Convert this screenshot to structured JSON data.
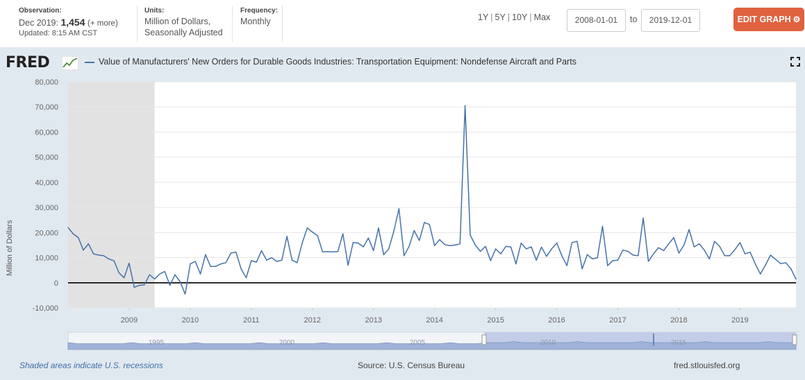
{
  "header": {
    "observation_label": "Observation:",
    "observation_date": "Dec 2019:",
    "observation_value": "1,454",
    "observation_more": "(+ more)",
    "updated": "Updated: 8:15 AM CST",
    "units_label": "Units:",
    "units_line1": "Million of Dollars,",
    "units_line2": "Seasonally Adjusted",
    "frequency_label": "Frequency:",
    "frequency_value": "Monthly",
    "range_1y": "1Y",
    "range_5y": "5Y",
    "range_10y": "10Y",
    "range_max": "Max",
    "range_sep": "|",
    "start_date": "2008-01-01",
    "to_label": "to",
    "end_date": "2019-12-01",
    "edit_graph": "EDIT GRAPH",
    "edit_icon": "gear-icon",
    "edit_color": "#e0623f"
  },
  "footer": {
    "recession_note": "Shaded areas indicate U.S. recessions",
    "source": "Source: U.S. Census Bureau",
    "url": "fred.stlouisfed.org"
  },
  "logo": "FRED",
  "chart_data": {
    "type": "line",
    "title": "Value of Manufacturers' New Orders for Durable Goods Industries: Transportation Equipment: Nondefense Aircraft and Parts",
    "ylabel": "Million of Dollars",
    "xlabel": "",
    "ylim": [
      -10000,
      80000
    ],
    "yticks": [
      "80,000",
      "70,000",
      "60,000",
      "50,000",
      "40,000",
      "30,000",
      "20,000",
      "10,000",
      "0",
      "-10,000"
    ],
    "ytick_values": [
      80000,
      70000,
      60000,
      50000,
      40000,
      30000,
      20000,
      10000,
      0,
      -10000
    ],
    "xticks": [
      "2009",
      "2010",
      "2011",
      "2012",
      "2013",
      "2014",
      "2015",
      "2016",
      "2017",
      "2018",
      "2019"
    ],
    "xlim": [
      "2008-01-01",
      "2019-12-01"
    ],
    "recession": {
      "start": "2008-01",
      "end": "2009-06"
    },
    "line_color": "#4572a7",
    "recession_color": "#e2e2e2",
    "navigator_labels": [
      "1995",
      "2000",
      "2005",
      "2010",
      "2015"
    ],
    "series": [
      {
        "start": "2008-01",
        "values": [
          22000,
          19500,
          18000,
          13000,
          15500,
          11500,
          11000,
          10800,
          9500,
          8800,
          4000,
          2000,
          7800,
          -1800,
          -1000,
          -800,
          3200,
          1500,
          3500,
          4500,
          -1000,
          3200,
          500,
          -4500,
          7500,
          8500,
          3500,
          11200,
          6500,
          6500,
          7500,
          8000,
          11800,
          12200,
          5500,
          2000,
          8800,
          8200,
          12800,
          9000,
          10000,
          8500,
          9000,
          18500,
          9000,
          8000,
          15800,
          21800,
          20200,
          18800,
          12300,
          12400,
          12300,
          12400,
          19500,
          7000,
          16000,
          15800,
          14300,
          17800,
          12800,
          21800,
          11200,
          13500,
          20500,
          29500,
          10800,
          14500,
          20800,
          16800,
          24000,
          23200,
          14800,
          17200,
          15200,
          14800,
          15000,
          15500,
          70500,
          19000,
          15000,
          12500,
          14500,
          8800,
          13500,
          11500,
          14500,
          14200,
          7500,
          15800,
          13500,
          14300,
          9000,
          14200,
          10500,
          13500,
          15800,
          10800,
          6800,
          16000,
          16500,
          5500,
          11200,
          9500,
          10000,
          22500,
          6800,
          8800,
          9000,
          13000,
          12500,
          11000,
          10800,
          25800,
          8500,
          11500,
          14000,
          12800,
          15500,
          18000,
          11800,
          15000,
          21200,
          14300,
          15500,
          13000,
          9500,
          16500,
          14500,
          10800,
          10800,
          13200,
          16000,
          11500,
          12200,
          7500,
          3500,
          7000,
          11000,
          9300,
          7600,
          8000,
          5600,
          1454
        ]
      }
    ]
  }
}
